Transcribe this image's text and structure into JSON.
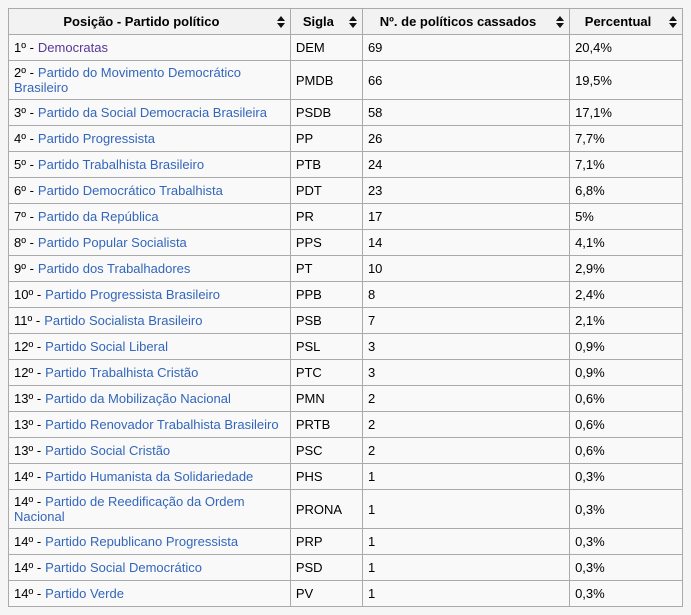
{
  "colors": {
    "link": "#3366bb",
    "visited_link": "#5a3696",
    "header_bg": "#f2f2f2",
    "cell_bg": "#f9f9f9",
    "border": "#aaaaaa",
    "page_bg": "#f5f5f5",
    "sort_icon": "#111111"
  },
  "table": {
    "headers": [
      {
        "label": "Posição - Partido político"
      },
      {
        "label": "Sigla"
      },
      {
        "label": "Nº. de políticos cassados"
      },
      {
        "label": "Percentual"
      }
    ],
    "sort_icon_name": "sort-both-icon",
    "rows": [
      {
        "position": "1º -",
        "party": "Democratas",
        "sigla": "DEM",
        "cassados": "69",
        "percentual": "20,4%",
        "visited": true
      },
      {
        "position": "2º -",
        "party": "Partido do Movimento Democrático Brasileiro",
        "sigla": "PMDB",
        "cassados": "66",
        "percentual": "19,5%",
        "visited": false
      },
      {
        "position": "3º -",
        "party": "Partido da Social Democracia Brasileira",
        "sigla": "PSDB",
        "cassados": "58",
        "percentual": "17,1%",
        "visited": false
      },
      {
        "position": "4º -",
        "party": "Partido Progressista",
        "sigla": "PP",
        "cassados": "26",
        "percentual": "7,7%",
        "visited": false
      },
      {
        "position": "5º -",
        "party": "Partido Trabalhista Brasileiro",
        "sigla": "PTB",
        "cassados": "24",
        "percentual": "7,1%",
        "visited": false
      },
      {
        "position": "6º -",
        "party": "Partido Democrático Trabalhista",
        "sigla": "PDT",
        "cassados": "23",
        "percentual": "6,8%",
        "visited": false
      },
      {
        "position": "7º -",
        "party": "Partido da República",
        "sigla": "PR",
        "cassados": "17",
        "percentual": "5%",
        "visited": false
      },
      {
        "position": "8º -",
        "party": "Partido Popular Socialista",
        "sigla": "PPS",
        "cassados": "14",
        "percentual": "4,1%",
        "visited": false
      },
      {
        "position": "9º -",
        "party": "Partido dos Trabalhadores",
        "sigla": "PT",
        "cassados": "10",
        "percentual": "2,9%",
        "visited": false
      },
      {
        "position": "10º -",
        "party": "Partido Progressista Brasileiro",
        "sigla": "PPB",
        "cassados": "8",
        "percentual": "2,4%",
        "visited": false
      },
      {
        "position": "11º -",
        "party": "Partido Socialista Brasileiro",
        "sigla": "PSB",
        "cassados": "7",
        "percentual": "2,1%",
        "visited": false
      },
      {
        "position": "12º -",
        "party": "Partido Social Liberal",
        "sigla": "PSL",
        "cassados": "3",
        "percentual": "0,9%",
        "visited": false
      },
      {
        "position": "12º -",
        "party": "Partido Trabalhista Cristão",
        "sigla": "PTC",
        "cassados": "3",
        "percentual": "0,9%",
        "visited": false
      },
      {
        "position": "13º -",
        "party": "Partido da Mobilização Nacional",
        "sigla": "PMN",
        "cassados": "2",
        "percentual": "0,6%",
        "visited": false
      },
      {
        "position": "13º -",
        "party": "Partido Renovador Trabalhista Brasileiro",
        "sigla": "PRTB",
        "cassados": "2",
        "percentual": "0,6%",
        "visited": false
      },
      {
        "position": "13º -",
        "party": "Partido Social Cristão",
        "sigla": "PSC",
        "cassados": "2",
        "percentual": "0,6%",
        "visited": false
      },
      {
        "position": "14º -",
        "party": "Partido Humanista da Solidariedade",
        "sigla": "PHS",
        "cassados": "1",
        "percentual": "0,3%",
        "visited": false
      },
      {
        "position": "14º -",
        "party": "Partido de Reedificação da Ordem Nacional",
        "sigla": "PRONA",
        "cassados": "1",
        "percentual": "0,3%",
        "visited": false
      },
      {
        "position": "14º -",
        "party": "Partido Republicano Progressista",
        "sigla": "PRP",
        "cassados": "1",
        "percentual": "0,3%",
        "visited": false
      },
      {
        "position": "14º -",
        "party": "Partido Social Democrático",
        "sigla": "PSD",
        "cassados": "1",
        "percentual": "0,3%",
        "visited": false
      },
      {
        "position": "14º -",
        "party": "Partido Verde",
        "sigla": "PV",
        "cassados": "1",
        "percentual": "0,3%",
        "visited": false
      }
    ]
  }
}
